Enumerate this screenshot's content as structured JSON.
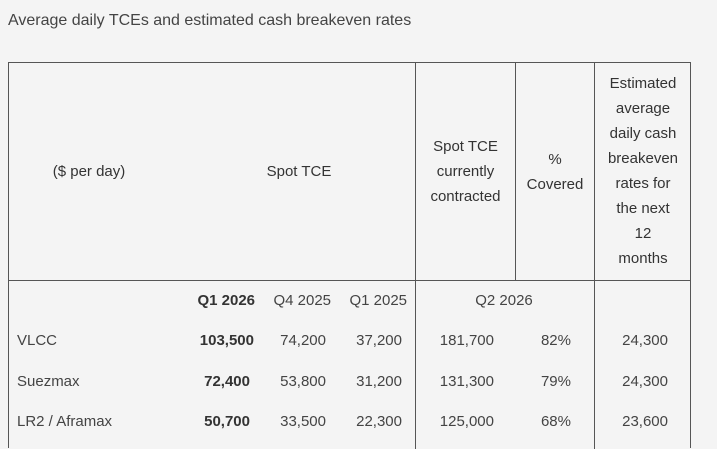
{
  "title": "Average daily TCEs and estimated cash breakeven rates",
  "table": {
    "header": {
      "unit": "($ per day)",
      "spot_tce": "Spot TCE",
      "spot_contracted": [
        "Spot TCE",
        "currently",
        "contracted"
      ],
      "pct_covered": [
        "%",
        "Covered"
      ],
      "breakeven": [
        "Estimated",
        "average",
        "daily cash",
        "breakeven",
        "rates for",
        "the next",
        "12",
        "months"
      ]
    },
    "subheader": {
      "q1_2026": "Q1 2026",
      "q4_2025": "Q4 2025",
      "q1_2025": "Q1 2025",
      "q2_2026": "Q2 2026"
    },
    "rows": [
      {
        "name": "VLCC",
        "q1_2026": "103,500",
        "q4_2025": "74,200",
        "q1_2025": "37,200",
        "contracted": "181,700",
        "covered": "82%",
        "breakeven": "24,300"
      },
      {
        "name": "Suezmax",
        "q1_2026": "72,400",
        "q4_2025": "53,800",
        "q1_2025": "31,200",
        "contracted": "131,300",
        "covered": "79%",
        "breakeven": "24,300"
      },
      {
        "name": "LR2 / Aframax",
        "q1_2026": "50,700",
        "q4_2025": "33,500",
        "q1_2025": "22,300",
        "contracted": "125,000",
        "covered": "68%",
        "breakeven": "23,600"
      }
    ]
  }
}
